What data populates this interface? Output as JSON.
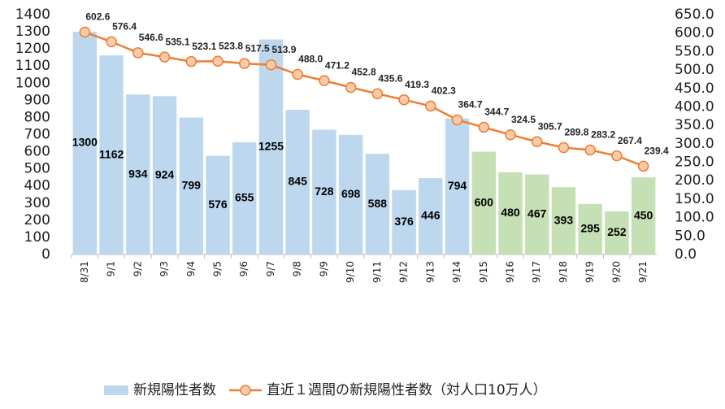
{
  "chart_data": {
    "type": "bar",
    "categories": [
      "8/31",
      "9/1",
      "9/2",
      "9/3",
      "9/4",
      "9/5",
      "9/6",
      "9/7",
      "9/8",
      "9/9",
      "9/10",
      "9/11",
      "9/12",
      "9/13",
      "9/14",
      "9/15",
      "9/16",
      "9/17",
      "9/18",
      "9/19",
      "9/20",
      "9/21"
    ],
    "series": [
      {
        "name": "新規陽性者数",
        "type": "bar",
        "colors": [
          "#bdd7ee",
          "#bdd7ee",
          "#bdd7ee",
          "#bdd7ee",
          "#bdd7ee",
          "#bdd7ee",
          "#bdd7ee",
          "#bdd7ee",
          "#bdd7ee",
          "#bdd7ee",
          "#bdd7ee",
          "#bdd7ee",
          "#bdd7ee",
          "#bdd7ee",
          "#bdd7ee",
          "#c5e0b4",
          "#c5e0b4",
          "#c5e0b4",
          "#c5e0b4",
          "#c5e0b4",
          "#c5e0b4",
          "#c5e0b4"
        ],
        "values": [
          1300,
          1162,
          934,
          924,
          799,
          576,
          655,
          1255,
          845,
          728,
          698,
          588,
          376,
          446,
          794,
          600,
          480,
          467,
          393,
          295,
          252,
          450
        ]
      },
      {
        "name": "直近１週間の新規陽性者数（対人口10万人）",
        "type": "line",
        "axis": "y2",
        "color": "#ed7d31",
        "marker_fill": "#f8cbad",
        "values": [
          602.6,
          576.4,
          546.6,
          535.1,
          523.1,
          523.8,
          517.5,
          513.9,
          488.0,
          471.2,
          452.8,
          435.6,
          419.3,
          402.3,
          364.7,
          344.7,
          324.5,
          305.7,
          289.8,
          283.2,
          267.4,
          239.4
        ],
        "value_labels": [
          "602.6",
          "576.4",
          "546.6",
          "535.1",
          "523.1",
          "523.8",
          "517.5",
          "513.9",
          "488.0",
          "471.2",
          "452.8",
          "435.6",
          "419.3",
          "402.3",
          "364.7",
          "344.7",
          "324.5",
          "305.7",
          "289.8",
          "283.2",
          "267.4",
          "239.4"
        ]
      }
    ],
    "ylim": [
      0,
      1400
    ],
    "yticks": [
      0,
      100,
      200,
      300,
      400,
      500,
      600,
      700,
      800,
      900,
      1000,
      1100,
      1200,
      1300,
      1400
    ],
    "y2lim": [
      0,
      650
    ],
    "y2ticks": [
      {
        "value": 0,
        "label": "0.0"
      },
      {
        "value": 50,
        "label": "50.0"
      },
      {
        "value": 100,
        "label": "100.0"
      },
      {
        "value": 150,
        "label": "150.0"
      },
      {
        "value": 200,
        "label": "200.0"
      },
      {
        "value": 250,
        "label": "250.0"
      },
      {
        "value": 300,
        "label": "300.0"
      },
      {
        "value": 350,
        "label": "350.0"
      },
      {
        "value": 400,
        "label": "400.0"
      },
      {
        "value": 450,
        "label": "450.0"
      },
      {
        "value": 500,
        "label": "500.0"
      },
      {
        "value": 550,
        "label": "550.0"
      },
      {
        "value": 600,
        "label": "600.0"
      },
      {
        "value": 650,
        "label": "650.0"
      }
    ],
    "legend": "bottom"
  }
}
